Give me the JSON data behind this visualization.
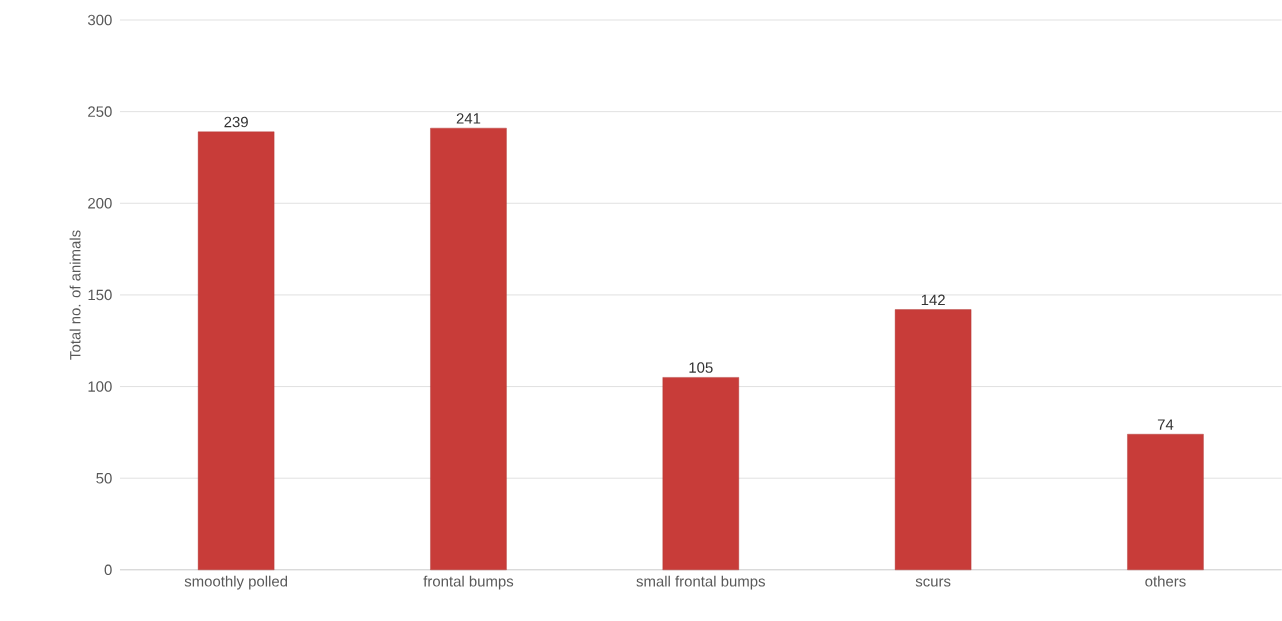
{
  "chart_data": {
    "type": "bar",
    "ylabel": "Total no. of animals",
    "categories": [
      "smoothly polled",
      "frontal bumps",
      "small frontal bumps",
      "scurs",
      "others"
    ],
    "values": [
      239,
      241,
      105,
      142,
      74
    ],
    "color": "#c83c39",
    "ylim": [
      0,
      300
    ],
    "yticks": [
      0,
      50,
      100,
      150,
      200,
      250,
      300
    ],
    "grid": "y",
    "data_labels": true
  }
}
